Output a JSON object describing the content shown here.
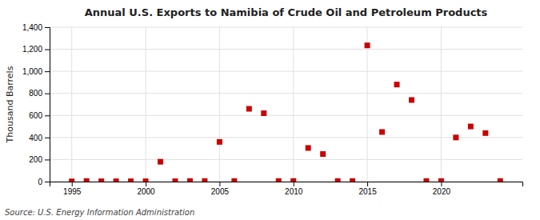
{
  "chart_data": {
    "type": "scatter",
    "title": "Annual U.S. Exports to Namibia of Crude Oil and Petroleum Products",
    "ylabel": "Thousand Barrels",
    "source": "Source: U.S. Energy Information Administration",
    "color": "#cc0000",
    "marker": "square",
    "grid": true,
    "xlim": [
      1993.5,
      2025.5
    ],
    "ylim": [
      0,
      1400
    ],
    "xticks": [
      1995,
      2000,
      2005,
      2010,
      2015,
      2020
    ],
    "yticks": [
      0,
      200,
      400,
      600,
      800,
      {
        "value": 1000,
        "label": "1,000"
      },
      {
        "value": 1200,
        "label": "1,200"
      },
      {
        "value": 1400,
        "label": "1,400"
      }
    ],
    "x": [
      1995,
      1996,
      1997,
      1998,
      1999,
      2000,
      2001,
      2002,
      2003,
      2004,
      2005,
      2006,
      2007,
      2008,
      2009,
      2010,
      2011,
      2012,
      2013,
      2014,
      2015,
      2016,
      2017,
      2018,
      2019,
      2020,
      2021,
      2022,
      2023,
      2024
    ],
    "values": [
      2,
      5,
      3,
      3,
      3,
      3,
      180,
      3,
      5,
      5,
      360,
      5,
      660,
      620,
      5,
      5,
      305,
      250,
      5,
      5,
      1235,
      450,
      880,
      740,
      5,
      5,
      400,
      500,
      440,
      5
    ]
  }
}
